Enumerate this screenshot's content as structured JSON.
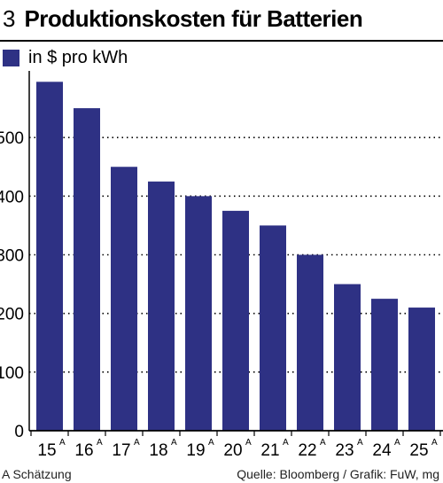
{
  "header": {
    "figure_number": "3",
    "title": "Produktionskosten für Batterien"
  },
  "legend": {
    "label": "in $ pro kWh",
    "color": "#2e3184"
  },
  "footer": {
    "note": "A Schätzung",
    "source": "Quelle: Bloomberg / Grafik: FuW, mg"
  },
  "chart_data": {
    "type": "bar",
    "categories": [
      "15",
      "16",
      "17",
      "18",
      "19",
      "20",
      "21",
      "22",
      "23",
      "24",
      "25"
    ],
    "category_superscripts": [
      "A",
      "A",
      "A",
      "A",
      "A",
      "A",
      "A",
      "A",
      "A",
      "A",
      "A"
    ],
    "values": [
      595,
      550,
      450,
      425,
      400,
      375,
      350,
      300,
      250,
      225,
      210
    ],
    "yticks": [
      0,
      100,
      200,
      300,
      400,
      500
    ],
    "ylim": [
      0,
      600
    ],
    "bar_color": "#2e3184",
    "grid": "dotted horizontal"
  }
}
